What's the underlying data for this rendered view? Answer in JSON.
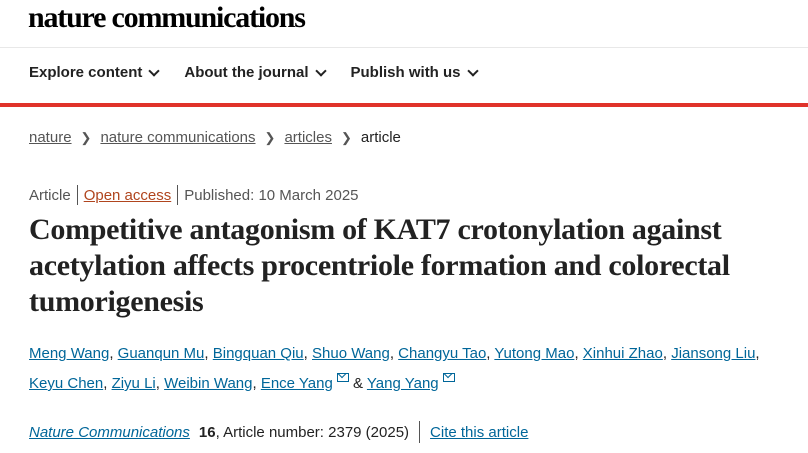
{
  "header": {
    "logo": "nature communications"
  },
  "nav": {
    "items": [
      {
        "label": "Explore content"
      },
      {
        "label": "About the journal"
      },
      {
        "label": "Publish with us"
      }
    ]
  },
  "colors": {
    "accent": "#e0322a",
    "link": "#006699",
    "open_access": "#b0451e"
  },
  "breadcrumb": {
    "items": [
      "nature",
      "nature communications",
      "articles"
    ],
    "current": "article"
  },
  "meta": {
    "type": "Article",
    "access": "Open access",
    "published": "Published: 10 March 2025"
  },
  "title": "Competitive antagonism of KAT7 crotonylation against acetylation affects procentriole formation and colorectal tumorigenesis",
  "authors": {
    "list": [
      "Meng Wang",
      "Guanqun Mu",
      "Bingquan Qiu",
      "Shuo Wang",
      "Changyu Tao",
      "Yutong Mao",
      "Xinhui Zhao",
      "Jiansong Liu",
      "Keyu Chen",
      "Ziyu Li",
      "Weibin Wang",
      "Ence Yang",
      "Yang Yang"
    ],
    "separator": ", ",
    "last_separator": " & ",
    "corresponding": [
      "Ence Yang",
      "Yang Yang"
    ]
  },
  "citation": {
    "journal": "Nature Communications",
    "volume": "16",
    "details": ", Article number: 2379 (2025)",
    "cite_label": "Cite this article"
  }
}
